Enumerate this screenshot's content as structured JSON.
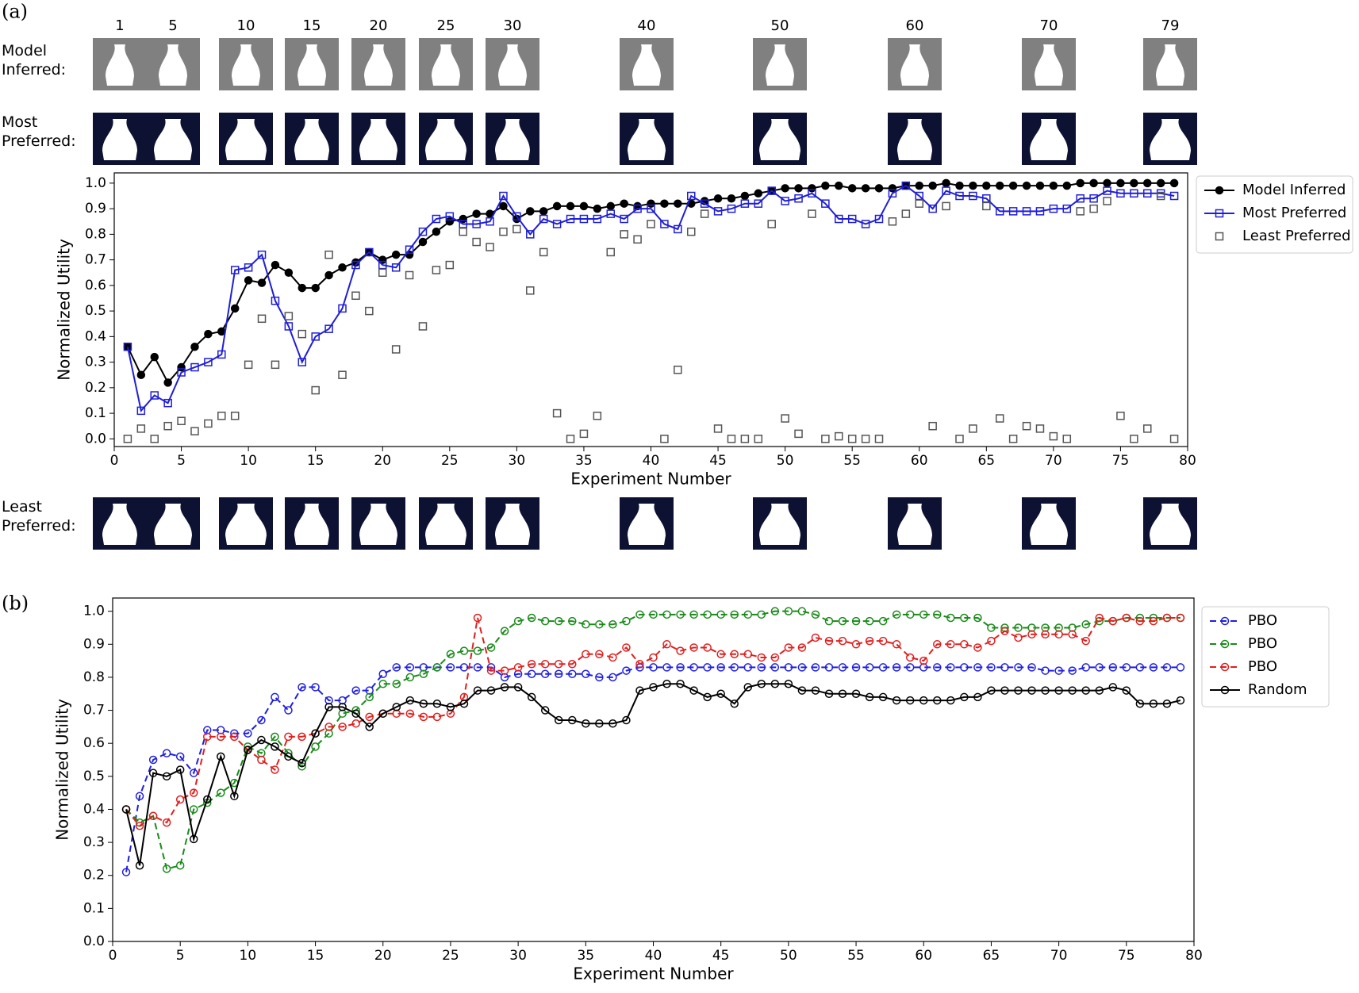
{
  "panel_labels": [
    "(a)",
    "(b)"
  ],
  "thumbnails": {
    "experiments": [
      1,
      5,
      10,
      15,
      20,
      25,
      30,
      40,
      50,
      60,
      70,
      79
    ],
    "rows": [
      "Model Inferred:",
      "Most Preferred:",
      "Least Preferred:"
    ]
  },
  "chart_data": [
    {
      "type": "line",
      "xlabel": "Experiment Number",
      "ylabel": "Normalized Utility",
      "xlim": [
        0,
        80
      ],
      "ylim": [
        -0.03,
        1.04
      ],
      "xticks": [
        0,
        5,
        10,
        15,
        20,
        25,
        30,
        35,
        40,
        45,
        50,
        55,
        60,
        65,
        70,
        75,
        80
      ],
      "yticks": [
        {
          "value": 0,
          "label": "0.0"
        },
        0.1,
        0.2,
        0.3,
        0.4,
        0.5,
        0.6,
        0.7,
        0.8,
        0.9,
        {
          "value": 1,
          "label": "1.0"
        }
      ],
      "grid": false,
      "legend": "outside right",
      "x": [
        1,
        2,
        3,
        4,
        5,
        6,
        7,
        8,
        9,
        10,
        11,
        12,
        13,
        14,
        15,
        16,
        17,
        18,
        19,
        20,
        21,
        22,
        23,
        24,
        25,
        26,
        27,
        28,
        29,
        30,
        31,
        32,
        33,
        34,
        35,
        36,
        37,
        38,
        39,
        40,
        41,
        42,
        43,
        44,
        45,
        46,
        47,
        48,
        49,
        50,
        51,
        52,
        53,
        54,
        55,
        56,
        57,
        58,
        59,
        60,
        61,
        62,
        63,
        64,
        65,
        66,
        67,
        68,
        69,
        70,
        71,
        72,
        73,
        74,
        75,
        76,
        77,
        78,
        79
      ],
      "series": [
        {
          "name": "Model Inferred",
          "color": "#000000",
          "line": "solid",
          "marker": "circle",
          "marker_fill": "filled",
          "values": [
            0.36,
            0.25,
            0.32,
            0.22,
            0.28,
            0.36,
            0.41,
            0.42,
            0.51,
            0.62,
            0.61,
            0.68,
            0.65,
            0.59,
            0.59,
            0.64,
            0.67,
            0.69,
            0.73,
            0.7,
            0.72,
            0.72,
            0.77,
            0.81,
            0.85,
            0.86,
            0.88,
            0.88,
            0.91,
            0.86,
            0.89,
            0.89,
            0.91,
            0.91,
            0.91,
            0.9,
            0.91,
            0.92,
            0.91,
            0.92,
            0.92,
            0.92,
            0.92,
            0.93,
            0.94,
            0.94,
            0.95,
            0.96,
            0.97,
            0.98,
            0.98,
            0.98,
            0.99,
            0.99,
            0.98,
            0.98,
            0.98,
            0.98,
            0.99,
            0.99,
            0.99,
            1.0,
            0.99,
            0.99,
            0.99,
            0.99,
            0.99,
            0.99,
            0.99,
            0.99,
            0.99,
            1.0,
            1.0,
            1.0,
            1.0,
            1.0,
            1.0,
            1.0,
            1.0
          ]
        },
        {
          "name": "Most Preferred",
          "color": "#1f1fd6",
          "line": "solid",
          "marker": "square",
          "marker_fill": "open",
          "values": [
            0.36,
            0.11,
            0.17,
            0.14,
            0.26,
            0.28,
            0.3,
            0.33,
            0.66,
            0.67,
            0.72,
            0.54,
            0.44,
            0.3,
            0.4,
            0.43,
            0.51,
            0.68,
            0.73,
            0.68,
            0.67,
            0.74,
            0.81,
            0.86,
            0.87,
            0.84,
            0.84,
            0.85,
            0.95,
            0.87,
            0.8,
            0.86,
            0.84,
            0.86,
            0.86,
            0.86,
            0.88,
            0.86,
            0.9,
            0.9,
            0.84,
            0.82,
            0.95,
            0.92,
            0.89,
            0.9,
            0.92,
            0.92,
            0.97,
            0.93,
            0.94,
            0.96,
            0.92,
            0.86,
            0.86,
            0.84,
            0.86,
            0.96,
            0.99,
            0.95,
            0.9,
            0.97,
            0.95,
            0.95,
            0.94,
            0.89,
            0.89,
            0.89,
            0.89,
            0.9,
            0.9,
            0.94,
            0.94,
            0.97,
            0.96,
            0.96,
            0.96,
            0.96,
            0.95
          ]
        },
        {
          "name": "Least Preferred",
          "color": "#555555",
          "line": "none",
          "marker": "square",
          "marker_fill": "open",
          "values": [
            0,
            0.04,
            0,
            0.05,
            0.07,
            0.03,
            0.06,
            0.09,
            0.09,
            0.29,
            0.47,
            0.29,
            0.48,
            0.41,
            0.19,
            0.72,
            0.25,
            0.56,
            0.5,
            0.65,
            0.35,
            0.64,
            0.44,
            0.66,
            0.68,
            0.81,
            0.77,
            0.75,
            0.81,
            0.82,
            0.58,
            0.73,
            0.1,
            0,
            0.02,
            0.09,
            0.73,
            0.8,
            0.78,
            0.84,
            0,
            0.27,
            0.81,
            0.88,
            0.04,
            0,
            0,
            0,
            0.84,
            0.08,
            0.02,
            0.88,
            0,
            0.01,
            0,
            0,
            0,
            0.85,
            0.88,
            0.92,
            0.05,
            0.91,
            0,
            0.04,
            0.91,
            0.08,
            0,
            0.05,
            0.04,
            0.01,
            0,
            0.89,
            0.9,
            0.93,
            0.09,
            0,
            0.04,
            0.95,
            0
          ]
        }
      ]
    },
    {
      "type": "line",
      "xlabel": "Experiment Number",
      "ylabel": "Normalized Utility",
      "xlim": [
        0,
        80
      ],
      "ylim": [
        0,
        1.04
      ],
      "xticks": [
        0,
        5,
        10,
        15,
        20,
        25,
        30,
        35,
        40,
        45,
        50,
        55,
        60,
        65,
        70,
        75,
        80
      ],
      "yticks": [
        {
          "value": 0,
          "label": "0.0"
        },
        0.1,
        0.2,
        0.3,
        0.4,
        0.5,
        0.6,
        0.7,
        0.8,
        0.9,
        {
          "value": 1,
          "label": "1.0"
        }
      ],
      "grid": false,
      "legend": "outside right",
      "x": [
        1,
        2,
        3,
        4,
        5,
        6,
        7,
        8,
        9,
        10,
        11,
        12,
        13,
        14,
        15,
        16,
        17,
        18,
        19,
        20,
        21,
        22,
        23,
        24,
        25,
        26,
        27,
        28,
        29,
        30,
        31,
        32,
        33,
        34,
        35,
        36,
        37,
        38,
        39,
        40,
        41,
        42,
        43,
        44,
        45,
        46,
        47,
        48,
        49,
        50,
        51,
        52,
        53,
        54,
        55,
        56,
        57,
        58,
        59,
        60,
        61,
        62,
        63,
        64,
        65,
        66,
        67,
        68,
        69,
        70,
        71,
        72,
        73,
        74,
        75,
        76,
        77,
        78,
        79
      ],
      "series": [
        {
          "name": "PBO",
          "color": "#1f1fe0",
          "line": "dashed",
          "marker": "circle",
          "marker_fill": "open",
          "values": [
            0.21,
            0.44,
            0.55,
            0.57,
            0.56,
            0.51,
            0.64,
            0.64,
            0.63,
            0.63,
            0.67,
            0.74,
            0.7,
            0.77,
            0.77,
            0.73,
            0.73,
            0.76,
            0.76,
            0.81,
            0.83,
            0.83,
            0.83,
            0.83,
            0.83,
            0.83,
            0.83,
            0.83,
            0.8,
            0.81,
            0.81,
            0.81,
            0.81,
            0.81,
            0.81,
            0.8,
            0.8,
            0.82,
            0.83,
            0.83,
            0.83,
            0.83,
            0.83,
            0.83,
            0.83,
            0.83,
            0.83,
            0.83,
            0.83,
            0.83,
            0.83,
            0.83,
            0.83,
            0.83,
            0.83,
            0.83,
            0.83,
            0.83,
            0.83,
            0.83,
            0.83,
            0.83,
            0.83,
            0.83,
            0.83,
            0.83,
            0.83,
            0.83,
            0.82,
            0.82,
            0.82,
            0.83,
            0.83,
            0.83,
            0.83,
            0.83,
            0.83,
            0.83,
            0.83
          ]
        },
        {
          "name": "PBO",
          "color": "#1a8a1a",
          "line": "dashed",
          "marker": "circle",
          "marker_fill": "open",
          "values": [
            0.4,
            0.36,
            0.38,
            0.22,
            0.23,
            0.4,
            0.42,
            0.45,
            0.48,
            0.59,
            0.57,
            0.62,
            0.57,
            0.53,
            0.59,
            0.63,
            0.69,
            0.7,
            0.74,
            0.78,
            0.78,
            0.8,
            0.81,
            0.83,
            0.87,
            0.88,
            0.88,
            0.89,
            0.94,
            0.97,
            0.98,
            0.97,
            0.97,
            0.97,
            0.96,
            0.96,
            0.96,
            0.97,
            0.99,
            0.99,
            0.99,
            0.99,
            0.99,
            0.99,
            0.99,
            0.99,
            0.99,
            0.99,
            1.0,
            1.0,
            1.0,
            0.99,
            0.97,
            0.97,
            0.97,
            0.97,
            0.97,
            0.99,
            0.99,
            0.99,
            0.99,
            0.98,
            0.98,
            0.98,
            0.95,
            0.95,
            0.95,
            0.95,
            0.95,
            0.95,
            0.95,
            0.96,
            0.97,
            0.97,
            0.98,
            0.98,
            0.98,
            0.98,
            0.98
          ]
        },
        {
          "name": "PBO",
          "color": "#e01f1f",
          "line": "dashed",
          "marker": "circle",
          "marker_fill": "open",
          "values": [
            0.4,
            0.35,
            0.38,
            0.36,
            0.43,
            0.45,
            0.62,
            0.62,
            0.62,
            0.58,
            0.55,
            0.52,
            0.62,
            0.62,
            0.63,
            0.65,
            0.65,
            0.66,
            0.68,
            0.69,
            0.69,
            0.69,
            0.68,
            0.68,
            0.69,
            0.74,
            0.98,
            0.82,
            0.82,
            0.83,
            0.84,
            0.84,
            0.84,
            0.84,
            0.87,
            0.87,
            0.86,
            0.89,
            0.84,
            0.86,
            0.9,
            0.88,
            0.89,
            0.89,
            0.87,
            0.87,
            0.87,
            0.86,
            0.86,
            0.89,
            0.89,
            0.92,
            0.91,
            0.91,
            0.9,
            0.91,
            0.91,
            0.9,
            0.86,
            0.85,
            0.9,
            0.9,
            0.9,
            0.89,
            0.91,
            0.94,
            0.92,
            0.93,
            0.93,
            0.93,
            0.93,
            0.91,
            0.98,
            0.97,
            0.98,
            0.97,
            0.97,
            0.98,
            0.98
          ]
        },
        {
          "name": "Random",
          "color": "#000000",
          "line": "solid",
          "marker": "circle",
          "marker_fill": "open",
          "values": [
            0.4,
            0.23,
            0.51,
            0.5,
            0.52,
            0.31,
            0.43,
            0.56,
            0.44,
            0.58,
            0.61,
            0.59,
            0.56,
            0.54,
            0.63,
            0.71,
            0.71,
            0.69,
            0.65,
            0.69,
            0.71,
            0.73,
            0.72,
            0.72,
            0.71,
            0.72,
            0.76,
            0.76,
            0.77,
            0.77,
            0.74,
            0.7,
            0.67,
            0.67,
            0.66,
            0.66,
            0.66,
            0.67,
            0.76,
            0.77,
            0.78,
            0.78,
            0.76,
            0.74,
            0.75,
            0.72,
            0.77,
            0.78,
            0.78,
            0.78,
            0.76,
            0.76,
            0.75,
            0.75,
            0.75,
            0.74,
            0.74,
            0.73,
            0.73,
            0.73,
            0.73,
            0.73,
            0.74,
            0.74,
            0.76,
            0.76,
            0.76,
            0.76,
            0.76,
            0.76,
            0.76,
            0.76,
            0.76,
            0.77,
            0.76,
            0.72,
            0.72,
            0.72,
            0.73
          ]
        }
      ]
    }
  ]
}
